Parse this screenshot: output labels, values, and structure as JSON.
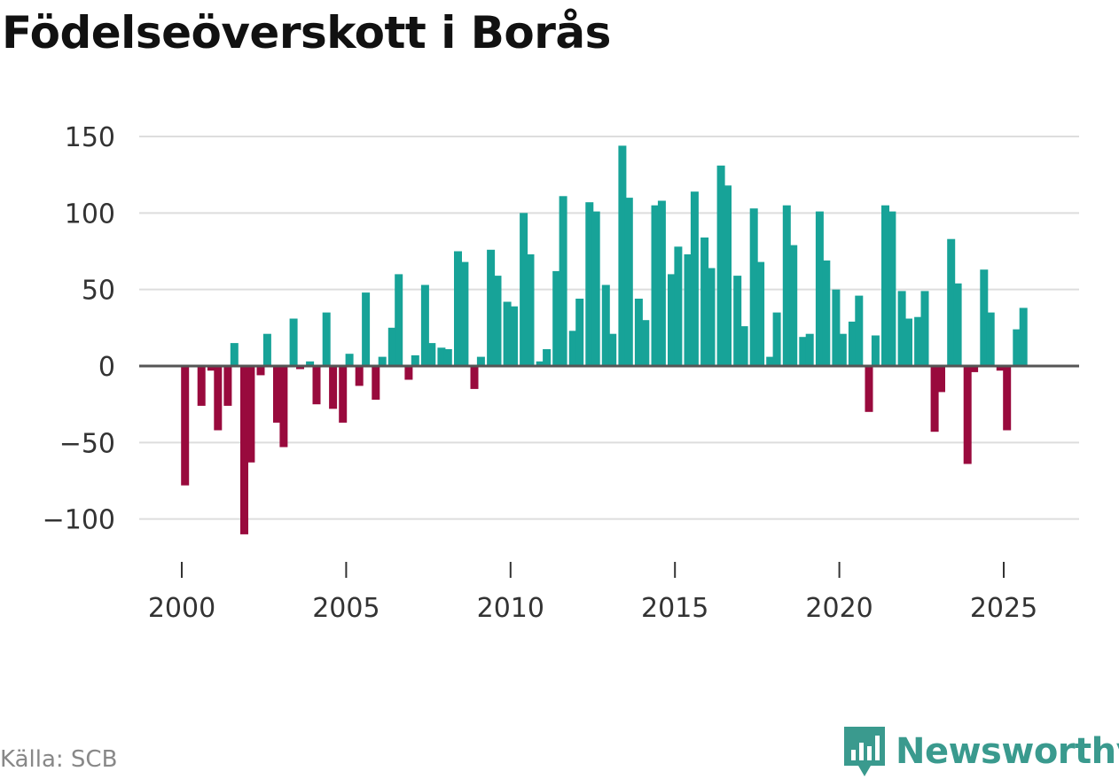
{
  "header": {
    "title": "Födelseöverskott i Borås"
  },
  "footer": {
    "source": "Källa: SCB",
    "brand": "Newsworthy",
    "brand_logo_icon": "newsworthy-logo-icon"
  },
  "colors": {
    "positive": "#17a398",
    "negative": "#990a3d",
    "grid": "#dddddd",
    "zero_line": "#555555",
    "brand": "#3a9a8e"
  },
  "chart_data": {
    "type": "bar",
    "title": "Födelseöverskott i Borås",
    "xlabel": "",
    "ylabel": "",
    "ylim": [
      -110,
      150
    ],
    "xlim": [
      2000,
      2026
    ],
    "y_ticks": [
      150,
      100,
      50,
      0,
      -50,
      -100
    ],
    "y_tick_labels": [
      "150",
      "100",
      "50",
      "0",
      "−50",
      "−100"
    ],
    "x_ticks": [
      2000,
      2005,
      2010,
      2015,
      2020,
      2025
    ],
    "x_tick_labels": [
      "2000",
      "2005",
      "2010",
      "2015",
      "2020",
      "2025"
    ],
    "frequency": "monthly-interval",
    "grid": true,
    "legend": "none",
    "x": [
      2000.1,
      2000.6,
      2000.9,
      2001.1,
      2001.4,
      2001.6,
      2001.9,
      2002.1,
      2002.4,
      2002.6,
      2002.9,
      2003.1,
      2003.4,
      2003.6,
      2003.9,
      2004.1,
      2004.4,
      2004.6,
      2004.9,
      2005.1,
      2005.4,
      2005.6,
      2005.9,
      2006.1,
      2006.4,
      2006.6,
      2006.9,
      2007.1,
      2007.4,
      2007.6,
      2007.9,
      2008.1,
      2008.4,
      2008.6,
      2008.9,
      2009.1,
      2009.4,
      2009.6,
      2009.9,
      2010.1,
      2010.4,
      2010.6,
      2010.9,
      2011.1,
      2011.4,
      2011.6,
      2011.9,
      2012.1,
      2012.4,
      2012.6,
      2012.9,
      2013.1,
      2013.4,
      2013.6,
      2013.9,
      2014.1,
      2014.4,
      2014.6,
      2014.9,
      2015.1,
      2015.4,
      2015.6,
      2015.9,
      2016.1,
      2016.4,
      2016.6,
      2016.9,
      2017.1,
      2017.4,
      2017.6,
      2017.9,
      2018.1,
      2018.4,
      2018.6,
      2018.9,
      2019.1,
      2019.4,
      2019.6,
      2019.9,
      2020.1,
      2020.4,
      2020.6,
      2020.9,
      2021.1,
      2021.4,
      2021.6,
      2021.9,
      2022.1,
      2022.4,
      2022.6,
      2022.9,
      2023.1,
      2023.4,
      2023.6,
      2023.9,
      2024.1,
      2024.4,
      2024.6,
      2024.9,
      2025.1,
      2025.4,
      2025.6
    ],
    "values": [
      -78,
      -26,
      -3,
      -42,
      -26,
      15,
      -110,
      -63,
      -6,
      21,
      -37,
      -53,
      31,
      -2,
      3,
      -25,
      35,
      -28,
      -37,
      8,
      -13,
      48,
      -22,
      6,
      25,
      60,
      -9,
      7,
      53,
      15,
      12,
      11,
      75,
      68,
      -15,
      6,
      76,
      59,
      42,
      39,
      100,
      73,
      3,
      11,
      62,
      111,
      23,
      44,
      107,
      101,
      53,
      21,
      144,
      110,
      44,
      30,
      105,
      108,
      60,
      78,
      73,
      114,
      84,
      64,
      131,
      118,
      59,
      26,
      103,
      68,
      6,
      35,
      105,
      79,
      19,
      21,
      101,
      69,
      50,
      21,
      29,
      46,
      -30,
      20,
      105,
      101,
      49,
      31,
      32,
      49,
      -43,
      -17,
      83,
      54,
      -64,
      -4,
      63,
      35,
      -3,
      -42,
      24,
      38
    ]
  }
}
